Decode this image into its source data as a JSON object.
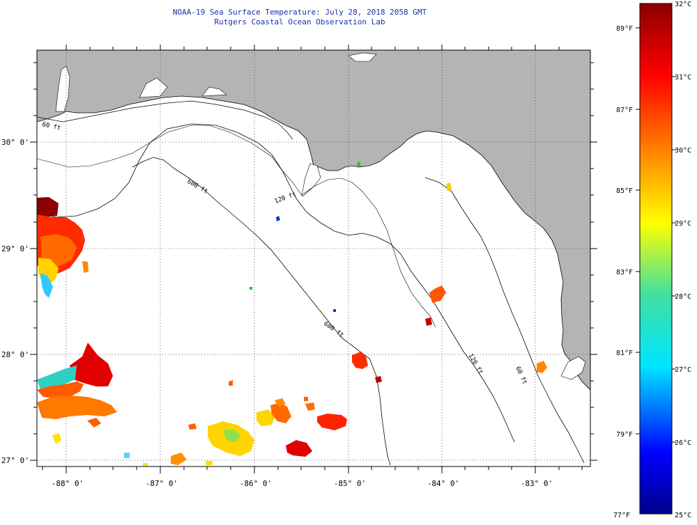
{
  "header": {
    "title_line1": "NOAA-19 Sea Surface Temperature:  July 28, 2018 2058 GMT",
    "title_line2": "Rutgers Coastal Ocean Observation Lab"
  },
  "map": {
    "lon_labels": [
      "-88° 0'",
      "-87° 0'",
      "-86° 0'",
      "-85° 0'",
      "-84° 0'",
      "-83° 0'"
    ],
    "lat_labels": [
      "30° 0'",
      "29° 0'",
      "28° 0'",
      "27° 0'"
    ],
    "isobath_labels": [
      "60 ft",
      "600 ft",
      "120 ft",
      "600 ft",
      "120 ft",
      "60 ft"
    ],
    "colors": {
      "land": "#b4b4b4",
      "ocean": "#ffffff",
      "grid": "#555555",
      "coast": "#000000"
    }
  },
  "colorbar": {
    "fahrenheit_labels": [
      "89°F",
      "87°F",
      "85°F",
      "83°F",
      "81°F",
      "79°F",
      "77°F"
    ],
    "celsius_labels": [
      "32°C",
      "31°C",
      "30°C",
      "29°C",
      "28°C",
      "27°C",
      "26°C",
      "25°C"
    ],
    "gradient_colors": [
      "#8b0000",
      "#ff0000",
      "#ff8c00",
      "#ffff00",
      "#40e0a0",
      "#00e5ff",
      "#0070ff",
      "#0000ff",
      "#00008b"
    ]
  }
}
